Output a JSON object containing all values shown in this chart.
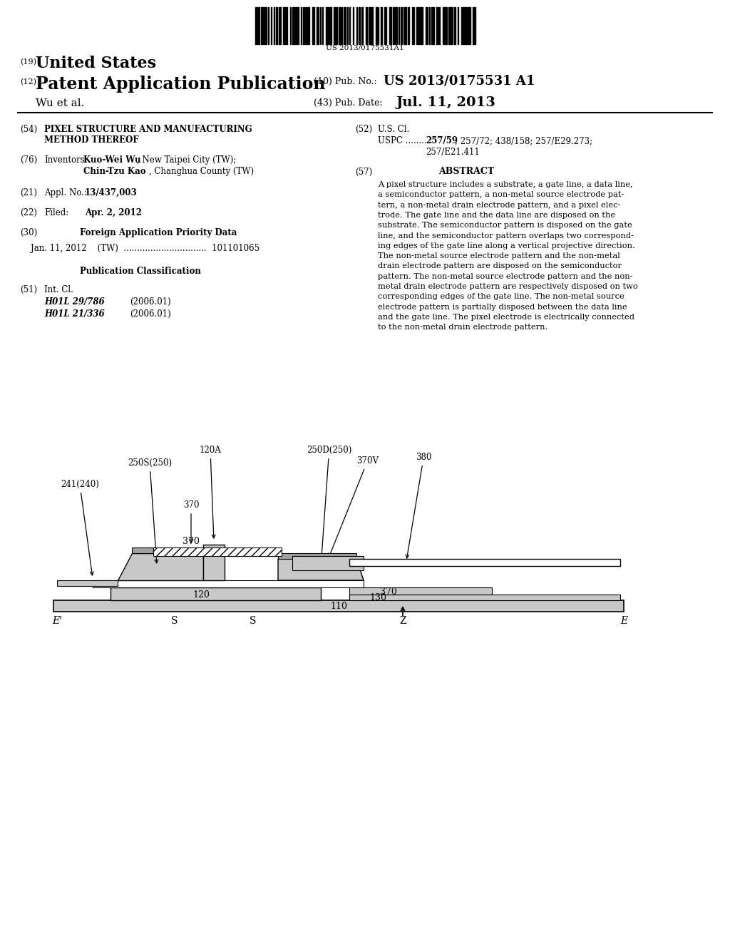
{
  "bg_color": "#ffffff",
  "barcode_text": "US 2013/0175531A1",
  "title_19_num": "(19)",
  "title_19_txt": "United States",
  "title_12_num": "(12)",
  "title_12_txt": "Patent Application Publication",
  "title_10_label": "(10) Pub. No.:",
  "title_10_value": "US 2013/0175531 A1",
  "title_43_label": "(43) Pub. Date:",
  "title_43_value": "Jul. 11, 2013",
  "authors": "Wu et al.",
  "abstract_lines": [
    "A pixel structure includes a substrate, a gate line, a data line,",
    "a semiconductor pattern, a non-metal source electrode pat-",
    "tern, a non-metal drain electrode pattern, and a pixel elec-",
    "trode. The gate line and the data line are disposed on the",
    "substrate. The semiconductor pattern is disposed on the gate",
    "line, and the semiconductor pattern overlaps two correspond-",
    "ing edges of the gate line along a vertical projective direction.",
    "The non-metal source electrode pattern and the non-metal",
    "drain electrode pattern are disposed on the semiconductor",
    "pattern. The non-metal source electrode pattern and the non-",
    "metal drain electrode pattern are respectively disposed on two",
    "corresponding edges of the gate line. The non-metal source",
    "electrode pattern is partially disposed between the data line",
    "and the gate line. The pixel electrode is electrically connected",
    "to the non-metal drain electrode pattern."
  ]
}
